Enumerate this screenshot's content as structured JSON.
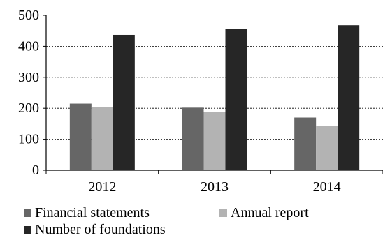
{
  "chart_data": {
    "type": "bar",
    "title": "",
    "xlabel": "",
    "ylabel": "",
    "categories": [
      "2012",
      "2013",
      "2014"
    ],
    "ylim": [
      0,
      500
    ],
    "yticks": [
      0,
      100,
      200,
      300,
      400,
      500
    ],
    "grid": true,
    "legend_position": "bottom",
    "series": [
      {
        "name": "Financial statements",
        "values": [
          215,
          202,
          170
        ],
        "color": "#666666"
      },
      {
        "name": "Annual report",
        "values": [
          203,
          188,
          144
        ],
        "color": "#b3b3b3"
      },
      {
        "name": "Number of foundations",
        "values": [
          437,
          455,
          468
        ],
        "color": "#262626"
      }
    ]
  }
}
